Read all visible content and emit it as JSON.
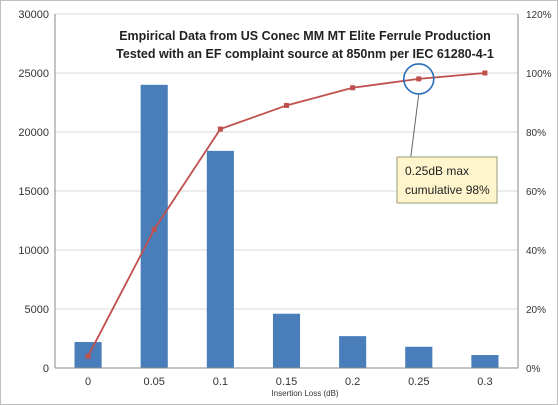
{
  "chart_data": {
    "type": "bar",
    "title_lines": [
      "Empirical Data from US Conec MM MT Elite Ferrule Production",
      "Tested with an EF complaint source at 850nm per IEC 61280-4-1"
    ],
    "xlabel": "Insertion Loss (dB)",
    "ylabel": "",
    "categories": [
      "0",
      "0.05",
      "0.1",
      "0.15",
      "0.2",
      "0.25",
      "0.3"
    ],
    "series": [
      {
        "type": "bar",
        "axis": "left",
        "color": "#4a7ebb",
        "values": [
          2200,
          24000,
          18400,
          4600,
          2700,
          1800,
          1100
        ]
      },
      {
        "type": "line",
        "axis": "right",
        "color": "#c0504d",
        "values": [
          0.04,
          0.47,
          0.81,
          0.89,
          0.95,
          0.98,
          1.0
        ]
      }
    ],
    "ylim": [
      0,
      30000
    ],
    "yticks": [
      "0",
      "5000",
      "10000",
      "15000",
      "20000",
      "25000",
      "30000"
    ],
    "y2lim": [
      0,
      1.2
    ],
    "y2ticks": [
      "0%",
      "20%",
      "40%",
      "60%",
      "80%",
      "100%",
      "120%"
    ],
    "grid": "horizontal",
    "annotation": {
      "lines": [
        "0.25dB max",
        "cumulative 98%"
      ],
      "target_index": 5,
      "box_color": "#fff5cc",
      "circle_color": "#2a6ebb"
    }
  }
}
